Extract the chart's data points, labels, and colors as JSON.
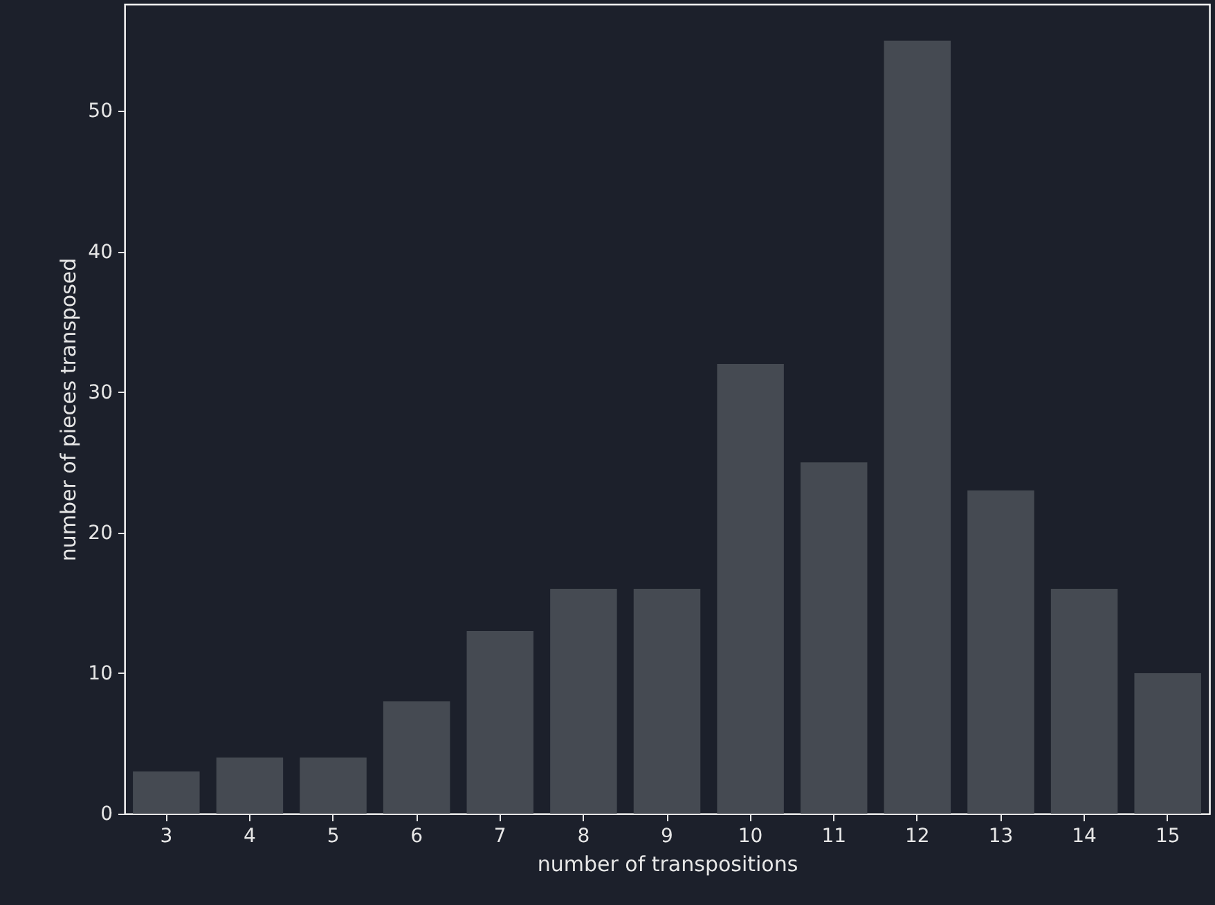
{
  "chart_data": {
    "type": "bar",
    "xlabel": "number of transpositions",
    "ylabel": "number of pieces transposed",
    "categories": [
      "3",
      "4",
      "5",
      "6",
      "7",
      "8",
      "9",
      "10",
      "11",
      "12",
      "13",
      "14",
      "15"
    ],
    "values": [
      3,
      4,
      4,
      8,
      13,
      16,
      16,
      32,
      25,
      55,
      23,
      16,
      10
    ],
    "color": "#454a52",
    "ylim": [
      0,
      57.6
    ],
    "yticks": [
      0,
      10,
      20,
      30,
      40,
      50
    ],
    "grid": false
  }
}
